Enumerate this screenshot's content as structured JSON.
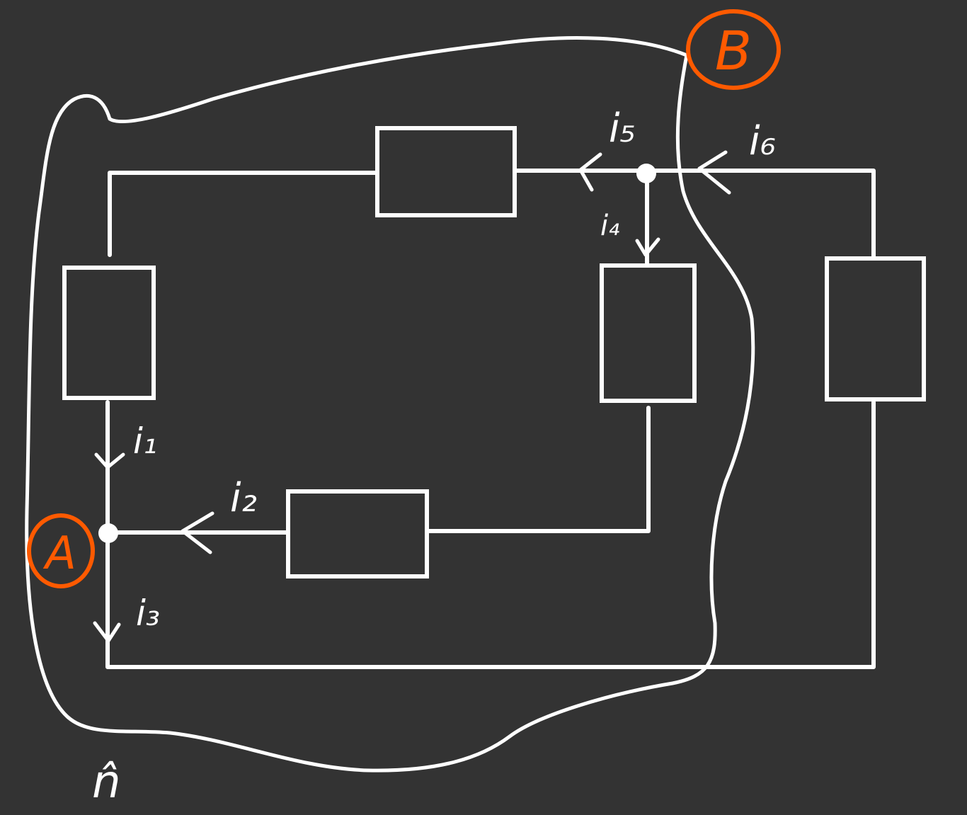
{
  "colors": {
    "background": "#333333",
    "ink": "#ffffff",
    "node_marker": "#ff5a00"
  },
  "currents": {
    "i1": "i₁",
    "i2": "i₂",
    "i3": "i₃",
    "i4": "i₄",
    "i5": "i₅",
    "i6": "i₆"
  },
  "nodes": {
    "a": "A",
    "b": "B"
  },
  "normal_label": "n̂"
}
